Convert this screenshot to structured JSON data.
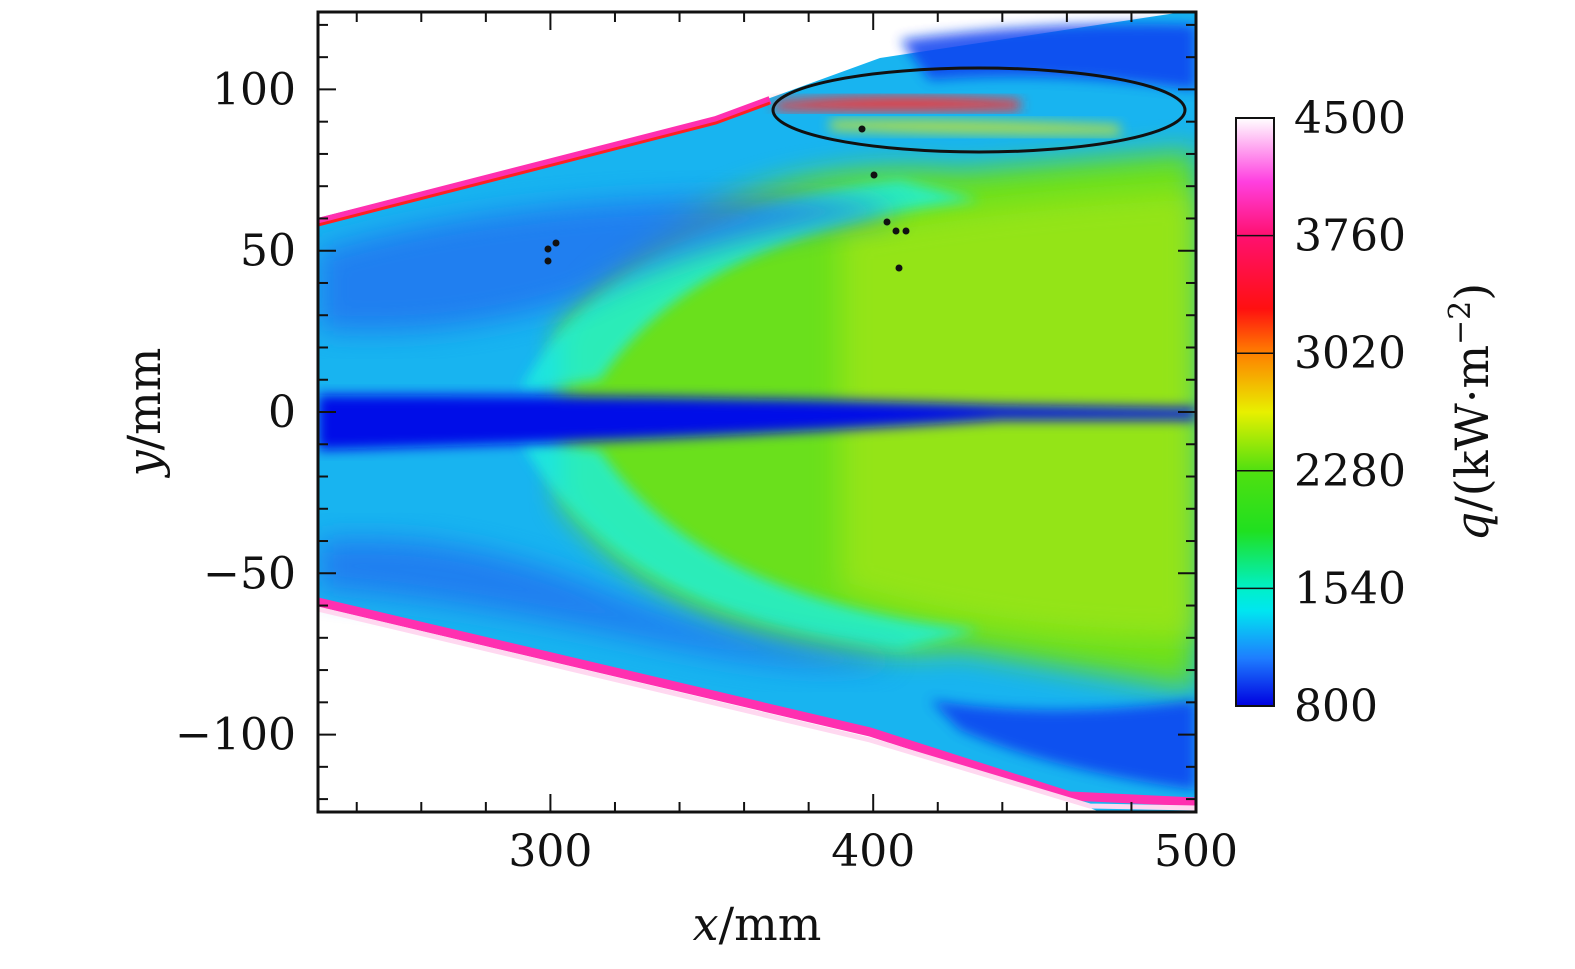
{
  "chart_data": {
    "type": "heatmap",
    "title": "",
    "xlabel": {
      "var": "x",
      "unit": "/mm"
    },
    "ylabel": {
      "var": "y",
      "unit": "/mm"
    },
    "xlim": [
      228,
      500
    ],
    "ylim": [
      -124,
      124
    ],
    "x_ticks": [
      300,
      400,
      500
    ],
    "x_tick_labels": [
      "300",
      "400",
      "500"
    ],
    "y_ticks": [
      -100,
      -50,
      0,
      50,
      100
    ],
    "y_tick_labels": [
      "−100",
      "−50",
      "0",
      "50",
      "100"
    ],
    "colorbar": {
      "label": {
        "var": "q",
        "unit": "/(kW·m",
        "exp": "−2",
        "close": ")"
      },
      "range": [
        800,
        4500
      ],
      "ticks": [
        800,
        1540,
        2280,
        3020,
        3760,
        4500
      ],
      "tick_labels": [
        "800",
        "1540",
        "2280",
        "3020",
        "3760",
        "4500"
      ],
      "stops": [
        {
          "value": 800,
          "color": "#0000e0"
        },
        {
          "value": 1100,
          "color": "#1e7dff"
        },
        {
          "value": 1400,
          "color": "#00e6f0"
        },
        {
          "value": 1540,
          "color": "#00f0c8"
        },
        {
          "value": 1900,
          "color": "#20e020"
        },
        {
          "value": 2280,
          "color": "#50e010"
        },
        {
          "value": 2650,
          "color": "#e8f000"
        },
        {
          "value": 3020,
          "color": "#ff8000"
        },
        {
          "value": 3300,
          "color": "#ff1010"
        },
        {
          "value": 3760,
          "color": "#ff1070"
        },
        {
          "value": 4100,
          "color": "#ff40e0"
        },
        {
          "value": 4500,
          "color": "#ffffff"
        }
      ]
    },
    "grid": false,
    "legend": "none"
  }
}
